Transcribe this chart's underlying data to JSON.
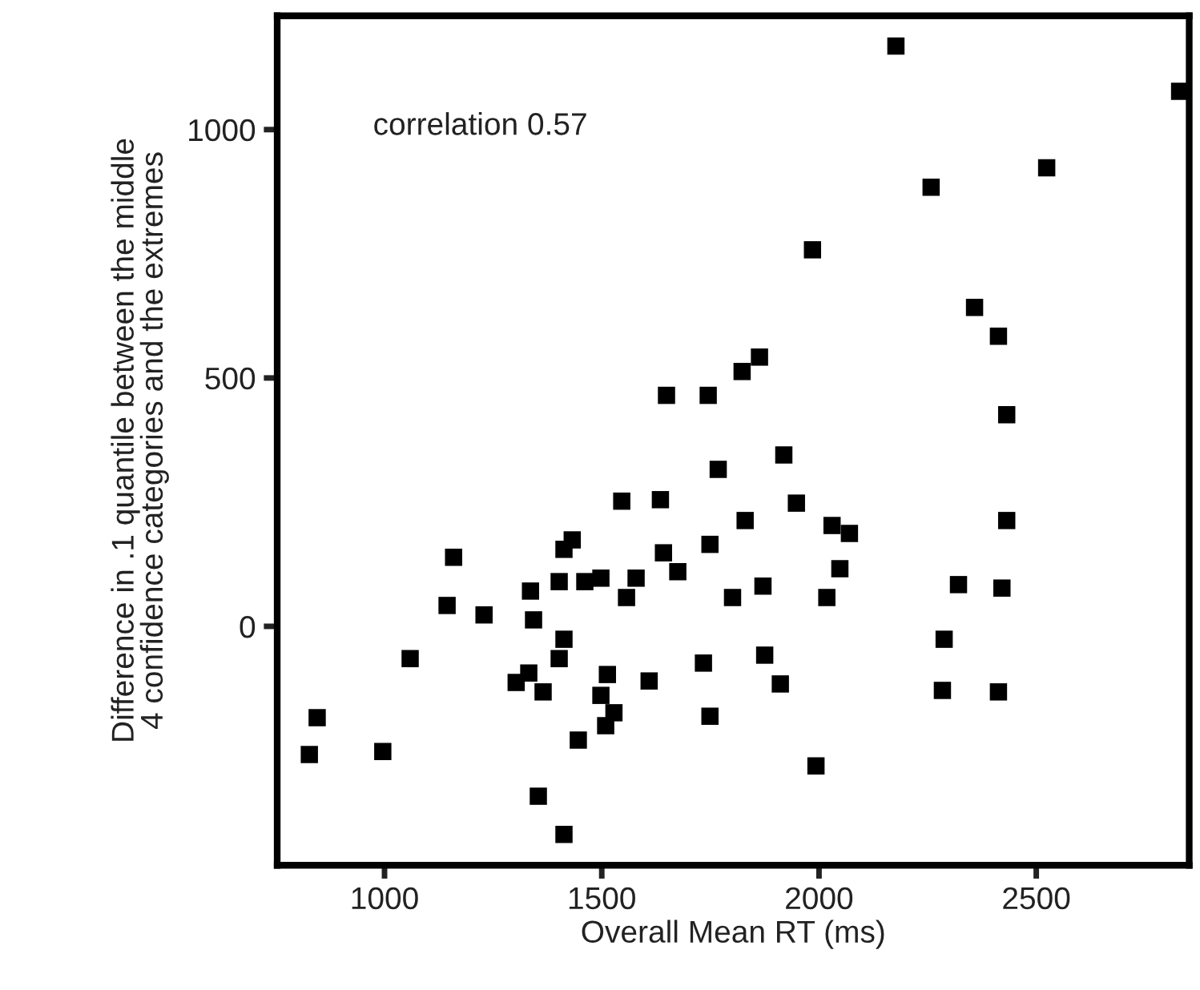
{
  "chart_data": {
    "type": "scatter",
    "xlabel": "Overall Mean RT (ms)",
    "ylabel": "Difference in .1 quantile between the middle\n4 confidence categories and the extremes",
    "annotations": [
      "correlation 0.57"
    ],
    "marker": "square",
    "grid": false,
    "legend": false,
    "xlim": [
      753,
      2852
    ],
    "ylim": [
      -481,
      1229
    ],
    "xticks": [
      1000,
      1500,
      2000,
      2500
    ],
    "yticks": [
      0,
      500,
      1000
    ],
    "series": [
      {
        "color": "#000000",
        "x": [
          1768,
          1546,
          1635,
          1830,
          1432,
          1413,
          1642,
          1749,
          1675,
          1159,
          1402,
          1461,
          1498,
          1579,
          1557,
          1336,
          1801,
          1144,
          1229,
          1343,
          1413,
          1402,
          1059,
          1734,
          1332,
          1303,
          1365,
          1513,
          1609,
          1498,
          1528,
          1509,
          1749,
          845,
          827,
          996,
          1446,
          1354,
          1413,
          1649,
          1745,
          1823,
          1863,
          2177,
          2830,
          2524,
          2258,
          1985,
          2358,
          2413,
          2432,
          1919,
          1948,
          2030,
          2070,
          2048,
          1871,
          2018,
          2321,
          2421,
          2432,
          2288,
          2284,
          2413,
          1875,
          1911,
          1993
        ],
        "values": [
          316,
          252,
          255,
          213,
          174,
          155,
          148,
          165,
          110,
          139,
          90,
          90,
          97,
          97,
          58,
          71,
          58,
          42,
          23,
          13,
          -26,
          -65,
          -65,
          -74,
          -94,
          -113,
          -132,
          -97,
          -110,
          -139,
          -174,
          -200,
          -181,
          -184,
          -258,
          -252,
          -229,
          -342,
          -419,
          465,
          465,
          513,
          542,
          1168,
          1077,
          923,
          884,
          758,
          642,
          584,
          426,
          345,
          248,
          203,
          187,
          116,
          81,
          58,
          84,
          77,
          213,
          -26,
          -129,
          -132,
          -58,
          -116,
          -281
        ]
      }
    ]
  }
}
